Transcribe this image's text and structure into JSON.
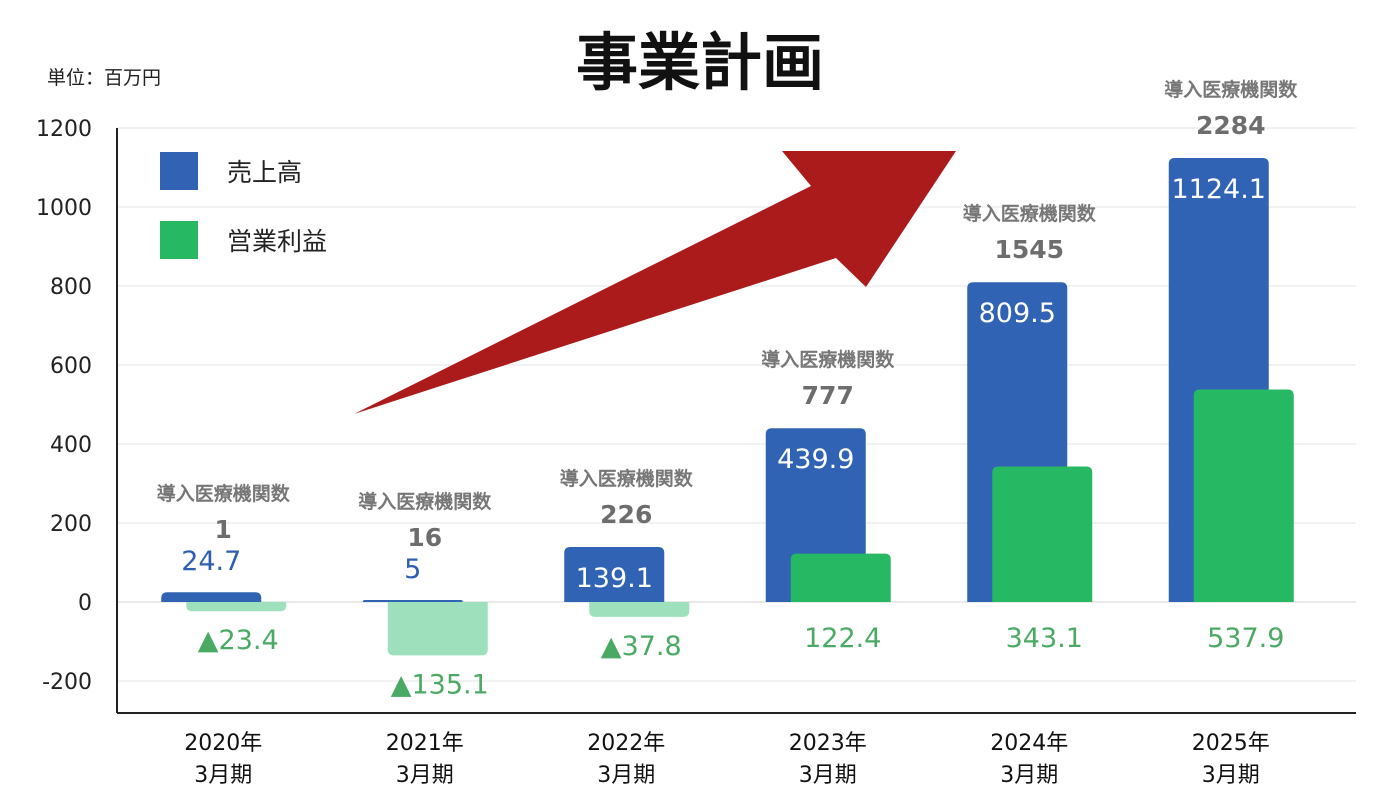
{
  "page": {
    "title": "事業計画",
    "unit_label": "単位：百万円"
  },
  "legend": [
    {
      "label": "売上高",
      "color": "#3063b3"
    },
    {
      "label": "営業利益",
      "color": "#27b863"
    }
  ],
  "colors": {
    "sales": "#3063b3",
    "profit_positive": "#27b863",
    "profit_negative": "#9fe0bc",
    "arrow": "#ab1b1b",
    "inst_text": "#777777"
  },
  "chart_data": {
    "type": "bar",
    "title": "事業計画",
    "ylabel": "",
    "xlabel": "",
    "ylim": [
      -200,
      1200
    ],
    "yticks": [
      1200,
      1000,
      800,
      600,
      400,
      200,
      0,
      -200
    ],
    "grid": true,
    "legend_position": "top-left",
    "categories": [
      {
        "year": "2020年",
        "period": "3月期"
      },
      {
        "year": "2021年",
        "period": "3月期"
      },
      {
        "year": "2022年",
        "period": "3月期"
      },
      {
        "year": "2023年",
        "period": "3月期"
      },
      {
        "year": "2024年",
        "period": "3月期"
      },
      {
        "year": "2025年",
        "period": "3月期"
      }
    ],
    "series": [
      {
        "name": "売上高",
        "values": [
          24.7,
          5,
          139.1,
          439.9,
          809.5,
          1124.1
        ],
        "labels": [
          "24.7",
          "5",
          "139.1",
          "439.9",
          "809.5",
          "1124.1"
        ]
      },
      {
        "name": "営業利益",
        "values": [
          -23.4,
          -135.1,
          -37.8,
          122.4,
          343.1,
          537.9
        ],
        "labels": [
          "▲23.4",
          "▲135.1",
          "▲37.8",
          "122.4",
          "343.1",
          "537.9"
        ]
      }
    ],
    "annotations": {
      "institutions_label": "導入医療機関数",
      "institutions": [
        "1",
        "16",
        "226",
        "777",
        "1545",
        "2284"
      ]
    }
  }
}
